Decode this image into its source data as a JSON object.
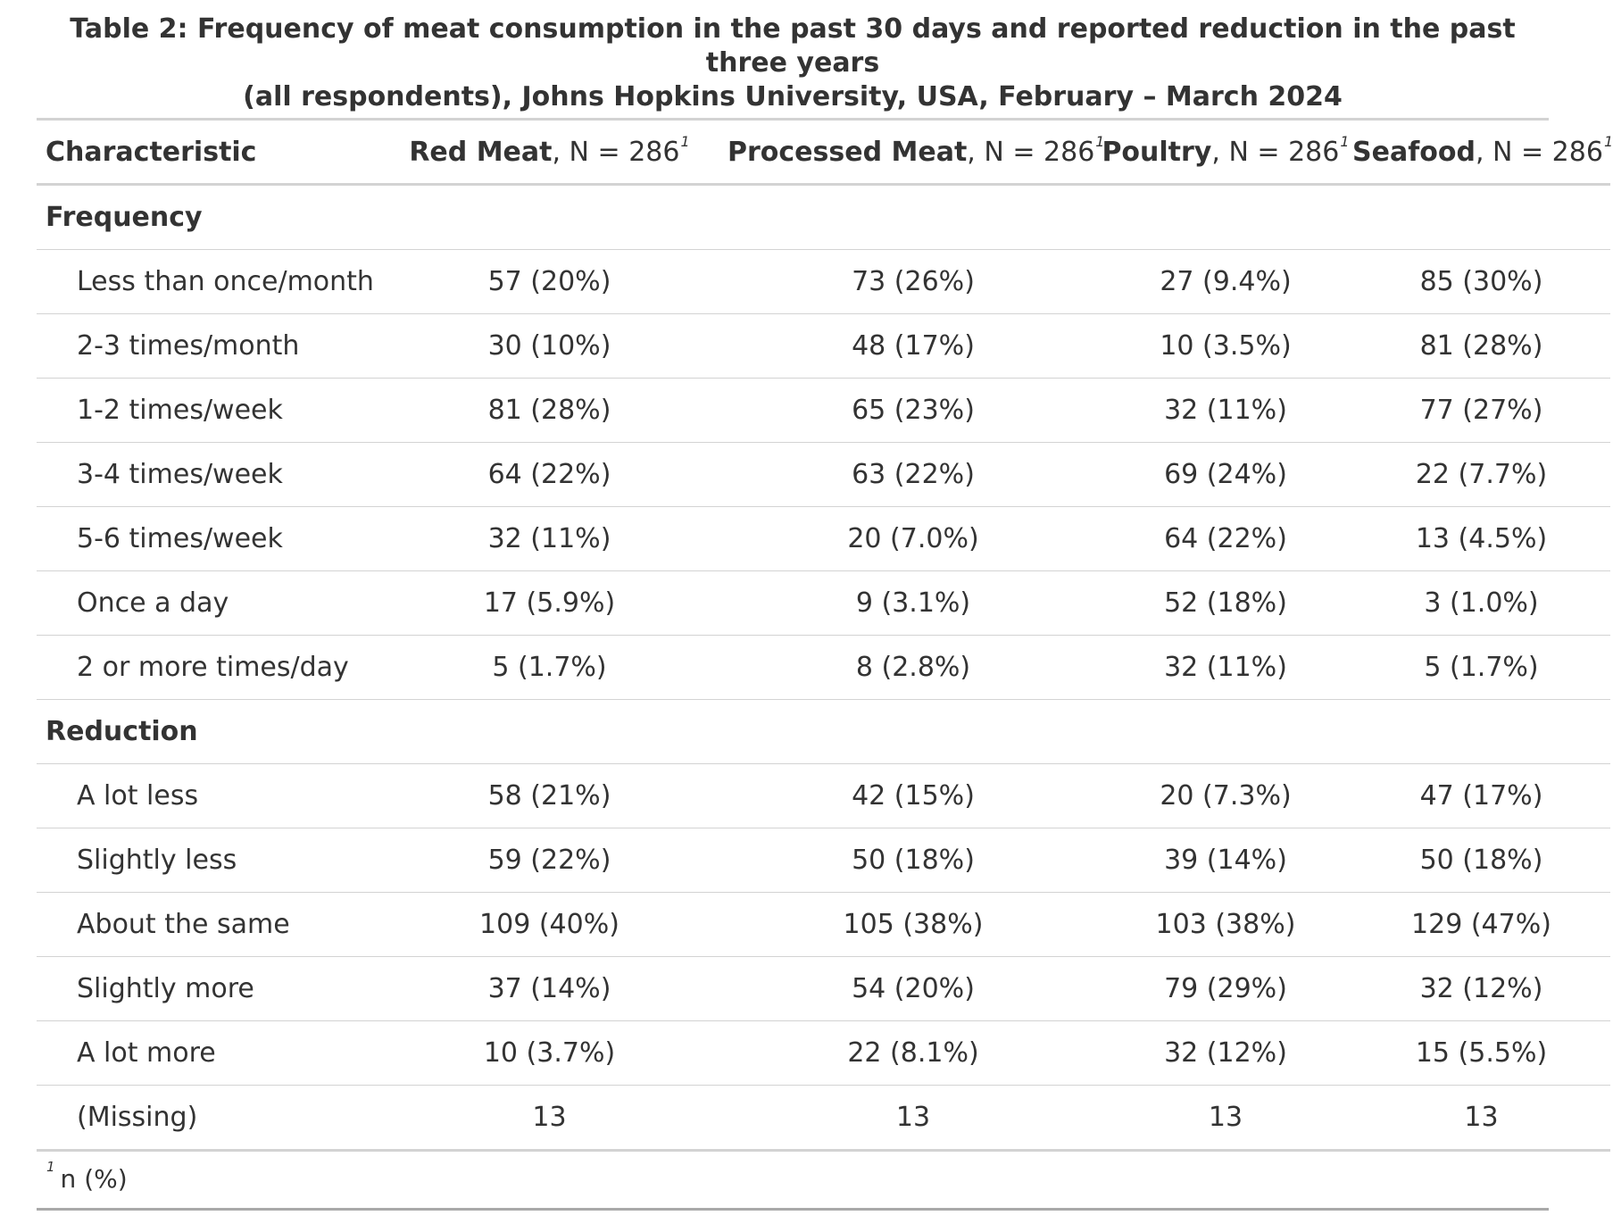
{
  "caption": {
    "line1": "Table 2: Frequency of meat consumption in the past 30 days and reported reduction in the past three years",
    "line2": "(all respondents), Johns Hopkins University, USA, February – March 2024"
  },
  "header": {
    "characteristic": "Characteristic",
    "footnote_mark": "1",
    "columns": [
      {
        "name": "Red Meat",
        "n": ", N = 286"
      },
      {
        "name": "Processed Meat",
        "n": ", N = 286"
      },
      {
        "name": "Poultry",
        "n": ", N = 286"
      },
      {
        "name": "Seafood",
        "n": ", N = 286"
      }
    ]
  },
  "groups": [
    {
      "label": "Frequency",
      "rows": [
        {
          "label": "Less than once/month",
          "values": [
            "57 (20%)",
            "73 (26%)",
            "27 (9.4%)",
            "85 (30%)"
          ]
        },
        {
          "label": "2-3 times/month",
          "values": [
            "30 (10%)",
            "48 (17%)",
            "10 (3.5%)",
            "81 (28%)"
          ]
        },
        {
          "label": "1-2 times/week",
          "values": [
            "81 (28%)",
            "65 (23%)",
            "32 (11%)",
            "77 (27%)"
          ]
        },
        {
          "label": "3-4 times/week",
          "values": [
            "64 (22%)",
            "63 (22%)",
            "69 (24%)",
            "22 (7.7%)"
          ]
        },
        {
          "label": "5-6 times/week",
          "values": [
            "32 (11%)",
            "20 (7.0%)",
            "64 (22%)",
            "13 (4.5%)"
          ]
        },
        {
          "label": "Once a day",
          "values": [
            "17 (5.9%)",
            "9 (3.1%)",
            "52 (18%)",
            "3 (1.0%)"
          ]
        },
        {
          "label": "2 or more times/day",
          "values": [
            "5 (1.7%)",
            "8 (2.8%)",
            "32 (11%)",
            "5 (1.7%)"
          ]
        }
      ]
    },
    {
      "label": "Reduction",
      "rows": [
        {
          "label": "A lot less",
          "values": [
            "58 (21%)",
            "42 (15%)",
            "20 (7.3%)",
            "47 (17%)"
          ]
        },
        {
          "label": "Slightly less",
          "values": [
            "59 (22%)",
            "50 (18%)",
            "39 (14%)",
            "50 (18%)"
          ]
        },
        {
          "label": "About the same",
          "values": [
            "109 (40%)",
            "105 (38%)",
            "103 (38%)",
            "129 (47%)"
          ]
        },
        {
          "label": "Slightly more",
          "values": [
            "37 (14%)",
            "54 (20%)",
            "79 (29%)",
            "32 (12%)"
          ]
        },
        {
          "label": "A lot more",
          "values": [
            "10 (3.7%)",
            "22 (8.1%)",
            "32 (12%)",
            "15 (5.5%)"
          ]
        },
        {
          "label": "(Missing)",
          "values": [
            "13",
            "13",
            "13",
            "13"
          ]
        }
      ]
    }
  ],
  "footnote": {
    "mark": "1",
    "text": "n (%)"
  }
}
